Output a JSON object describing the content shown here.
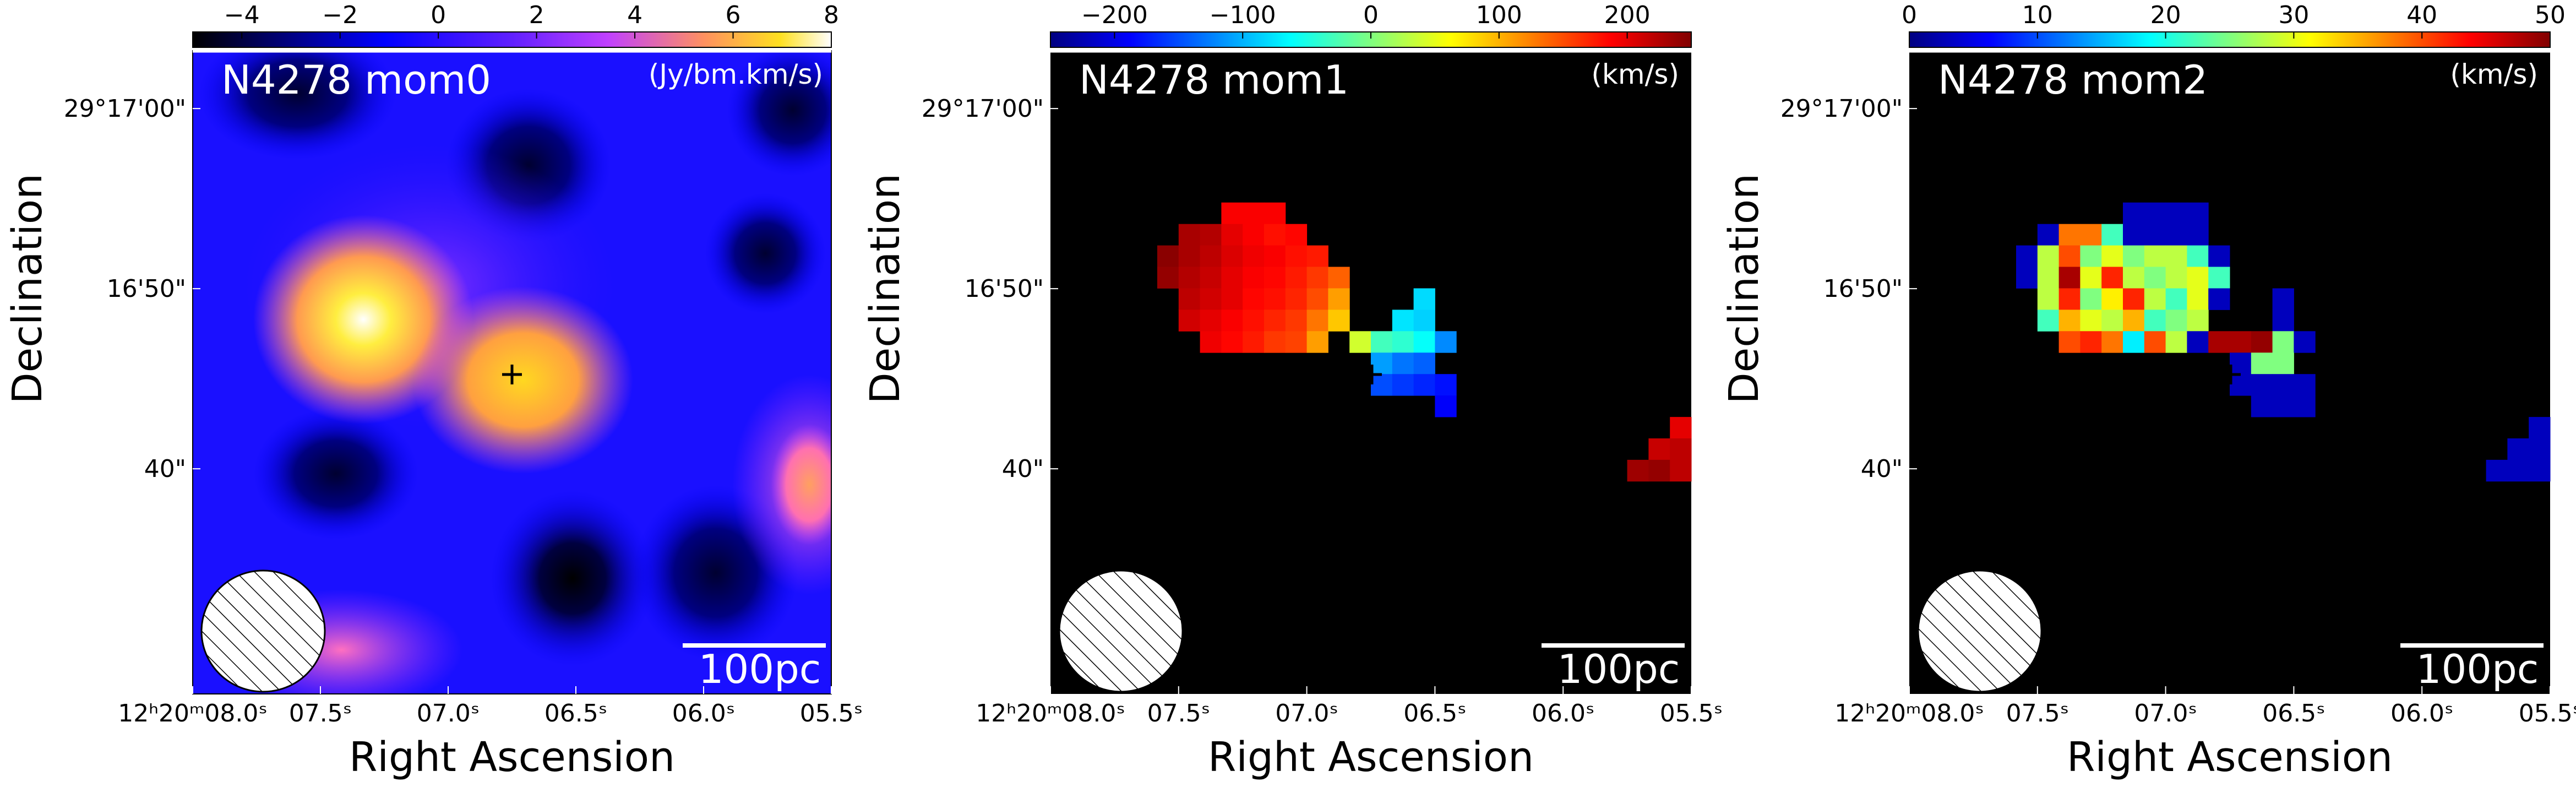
{
  "chart_data": [
    {
      "type": "heatmap",
      "title": "N4278 mom0",
      "unit": "(Jy/bm.km/s)",
      "colormap": "gnuplot2",
      "colorbar": {
        "range": [
          -5,
          8
        ],
        "ticks": [
          "−4",
          "−2",
          "0",
          "2",
          "4",
          "6",
          "8"
        ],
        "tick_values": [
          -4,
          -2,
          0,
          2,
          4,
          6,
          8
        ]
      },
      "xlabel": "Right Ascension",
      "ylabel": "Declination",
      "x_ticks": [
        "12ʰ20ᵐ08.0ˢ",
        "07.5ˢ",
        "07.0ˢ",
        "06.5ˢ",
        "06.0ˢ",
        "05.5ˢ"
      ],
      "y_ticks": [
        "29°17'00\"",
        "16'50\"",
        "40\""
      ],
      "scale_bar": "100pc",
      "features": [
        {
          "name": "peak-1",
          "value": 8.0
        },
        {
          "name": "peak-2",
          "value": 6.5
        },
        {
          "name": "peak-3",
          "value": 5.0
        },
        {
          "name": "trough-1",
          "value": -5.0
        },
        {
          "name": "trough-2",
          "value": -4.0
        }
      ]
    },
    {
      "type": "heatmap",
      "title": "N4278 mom1",
      "unit": "(km/s)",
      "colormap": "jet",
      "colorbar": {
        "range": [
          -250,
          250
        ],
        "ticks": [
          "−200",
          "−100",
          "0",
          "100",
          "200"
        ],
        "tick_values": [
          -200,
          -100,
          0,
          100,
          200
        ]
      },
      "xlabel": "Right Ascension",
      "ylabel": "Declination",
      "x_ticks": [
        "12ʰ20ᵐ08.0ˢ",
        "07.5ˢ",
        "07.0ˢ",
        "06.5ˢ",
        "06.0ˢ",
        "05.5ˢ"
      ],
      "y_ticks": [
        "29°17'00\"",
        "16'50\"",
        "40\""
      ],
      "scale_bar": "100pc"
    },
    {
      "type": "heatmap",
      "title": "N4278 mom2",
      "unit": "(km/s)",
      "colormap": "jet",
      "colorbar": {
        "range": [
          0,
          50
        ],
        "ticks": [
          "0",
          "10",
          "20",
          "30",
          "40",
          "50"
        ],
        "tick_values": [
          0,
          10,
          20,
          30,
          40,
          50
        ]
      },
      "xlabel": "Right Ascension",
      "ylabel": "Declination",
      "x_ticks": [
        "12ʰ20ᵐ08.0ˢ",
        "07.5ˢ",
        "07.0ˢ",
        "06.5ˢ",
        "06.0ˢ",
        "05.5ˢ"
      ],
      "y_ticks": [
        "29°17'00\"",
        "16'50\"",
        "40\""
      ],
      "scale_bar": "100pc"
    }
  ],
  "mom1_pixels": [
    [
      8,
      4,
      190
    ],
    [
      9,
      4,
      190
    ],
    [
      10,
      4,
      190
    ],
    [
      6,
      5,
      230
    ],
    [
      7,
      5,
      225
    ],
    [
      8,
      5,
      200
    ],
    [
      9,
      5,
      190
    ],
    [
      10,
      5,
      180
    ],
    [
      11,
      5,
      185
    ],
    [
      5,
      6,
      245
    ],
    [
      6,
      6,
      230
    ],
    [
      7,
      6,
      220
    ],
    [
      8,
      6,
      205
    ],
    [
      9,
      6,
      195
    ],
    [
      10,
      6,
      190
    ],
    [
      11,
      6,
      180
    ],
    [
      12,
      6,
      175
    ],
    [
      5,
      7,
      240
    ],
    [
      6,
      7,
      225
    ],
    [
      7,
      7,
      215
    ],
    [
      8,
      7,
      200
    ],
    [
      9,
      7,
      190
    ],
    [
      10,
      7,
      185
    ],
    [
      11,
      7,
      175
    ],
    [
      12,
      7,
      160
    ],
    [
      13,
      7,
      140
    ],
    [
      6,
      8,
      220
    ],
    [
      7,
      8,
      210
    ],
    [
      8,
      8,
      200
    ],
    [
      9,
      8,
      185
    ],
    [
      10,
      8,
      180
    ],
    [
      11,
      8,
      170
    ],
    [
      12,
      8,
      150
    ],
    [
      13,
      8,
      110
    ],
    [
      17,
      8,
      -80
    ],
    [
      6,
      9,
      210
    ],
    [
      7,
      9,
      200
    ],
    [
      8,
      9,
      190
    ],
    [
      9,
      9,
      180
    ],
    [
      10,
      9,
      170
    ],
    [
      11,
      9,
      160
    ],
    [
      12,
      9,
      130
    ],
    [
      13,
      9,
      90
    ],
    [
      16,
      9,
      -75
    ],
    [
      17,
      9,
      -85
    ],
    [
      7,
      10,
      195
    ],
    [
      8,
      10,
      185
    ],
    [
      9,
      10,
      175
    ],
    [
      10,
      10,
      160
    ],
    [
      11,
      10,
      155
    ],
    [
      12,
      10,
      110
    ],
    [
      14,
      10,
      40
    ],
    [
      15,
      10,
      -30
    ],
    [
      16,
      10,
      -40
    ],
    [
      17,
      10,
      -60
    ],
    [
      18,
      10,
      -120
    ],
    [
      15,
      11,
      -110
    ],
    [
      16,
      11,
      -130
    ],
    [
      17,
      11,
      -140
    ],
    [
      15,
      12,
      -150
    ],
    [
      16,
      12,
      -160
    ],
    [
      17,
      12,
      -170
    ],
    [
      18,
      12,
      -180
    ],
    [
      18,
      13,
      -190
    ],
    [
      29,
      14,
      200
    ],
    [
      28,
      15,
      215
    ],
    [
      29,
      15,
      220
    ],
    [
      27,
      16,
      235
    ],
    [
      28,
      16,
      240
    ],
    [
      29,
      16,
      220
    ]
  ],
  "mom2_pixels": [
    [
      10,
      4,
      3
    ],
    [
      11,
      4,
      3
    ],
    [
      12,
      4,
      3
    ],
    [
      13,
      4,
      3
    ],
    [
      6,
      5,
      3
    ],
    [
      7,
      5,
      38
    ],
    [
      8,
      5,
      38
    ],
    [
      9,
      5,
      22
    ],
    [
      10,
      5,
      3
    ],
    [
      11,
      5,
      3
    ],
    [
      12,
      5,
      3
    ],
    [
      13,
      5,
      3
    ],
    [
      5,
      6,
      3
    ],
    [
      6,
      6,
      28
    ],
    [
      7,
      6,
      40
    ],
    [
      8,
      6,
      25
    ],
    [
      9,
      6,
      30
    ],
    [
      10,
      6,
      25
    ],
    [
      11,
      6,
      28
    ],
    [
      12,
      6,
      28
    ],
    [
      13,
      6,
      22
    ],
    [
      14,
      6,
      3
    ],
    [
      5,
      7,
      3
    ],
    [
      6,
      7,
      28
    ],
    [
      7,
      7,
      48
    ],
    [
      8,
      7,
      30
    ],
    [
      9,
      7,
      42
    ],
    [
      10,
      7,
      28
    ],
    [
      11,
      7,
      25
    ],
    [
      12,
      7,
      28
    ],
    [
      13,
      7,
      30
    ],
    [
      14,
      7,
      22
    ],
    [
      6,
      8,
      28
    ],
    [
      7,
      8,
      42
    ],
    [
      8,
      8,
      25
    ],
    [
      9,
      8,
      32
    ],
    [
      10,
      8,
      42
    ],
    [
      11,
      8,
      28
    ],
    [
      12,
      8,
      22
    ],
    [
      13,
      8,
      30
    ],
    [
      14,
      8,
      3
    ],
    [
      17,
      8,
      3
    ],
    [
      6,
      9,
      22
    ],
    [
      7,
      9,
      35
    ],
    [
      8,
      9,
      30
    ],
    [
      9,
      9,
      28
    ],
    [
      10,
      9,
      35
    ],
    [
      11,
      9,
      22
    ],
    [
      12,
      9,
      25
    ],
    [
      13,
      9,
      28
    ],
    [
      17,
      9,
      3
    ],
    [
      7,
      10,
      40
    ],
    [
      8,
      10,
      42
    ],
    [
      9,
      10,
      38
    ],
    [
      10,
      10,
      18
    ],
    [
      11,
      10,
      40
    ],
    [
      12,
      10,
      28
    ],
    [
      13,
      10,
      3
    ],
    [
      14,
      10,
      48
    ],
    [
      15,
      10,
      48
    ],
    [
      16,
      10,
      49
    ],
    [
      17,
      10,
      25
    ],
    [
      18,
      10,
      3
    ],
    [
      15,
      11,
      3
    ],
    [
      16,
      11,
      25
    ],
    [
      17,
      11,
      25
    ],
    [
      15,
      12,
      3
    ],
    [
      16,
      12,
      3
    ],
    [
      17,
      12,
      3
    ],
    [
      18,
      12,
      3
    ],
    [
      16,
      13,
      3
    ],
    [
      17,
      13,
      3
    ],
    [
      18,
      13,
      3
    ],
    [
      29,
      14,
      3
    ],
    [
      28,
      15,
      3
    ],
    [
      29,
      15,
      3
    ],
    [
      27,
      16,
      3
    ],
    [
      28,
      16,
      3
    ],
    [
      29,
      16,
      3
    ]
  ]
}
